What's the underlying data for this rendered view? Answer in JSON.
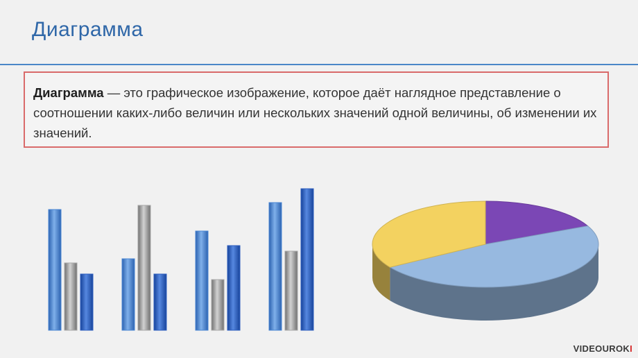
{
  "slide": {
    "title": "Диаграмма",
    "definition": {
      "term": "Диаграмма",
      "text": " — это графическое изображение, которое даёт наглядное представление о соотношении каких-либо величин или нескольких значений одной величины, об изменении их значений."
    }
  },
  "watermark": {
    "prefix": "VIDEOUROK",
    "accent": "I"
  },
  "chart_data": [
    {
      "type": "bar",
      "categories": [
        "",
        "",
        "",
        ""
      ],
      "series": [
        {
          "values": [
            174,
            103,
            143,
            184
          ],
          "color": "#4a86d4"
        },
        {
          "values": [
            97,
            180,
            73,
            114
          ],
          "color": "#a8a8a8"
        },
        {
          "values": [
            81,
            81,
            122,
            204
          ],
          "color": "#2f5fc0"
        }
      ],
      "ylim": [
        0,
        210
      ],
      "grid": false
    },
    {
      "type": "pie",
      "slices": [
        {
          "value": 18,
          "color": "#7b47b5"
        },
        {
          "value": 48,
          "color": "#97b9e0"
        },
        {
          "value": 34,
          "color": "#f3d260"
        }
      ]
    }
  ]
}
